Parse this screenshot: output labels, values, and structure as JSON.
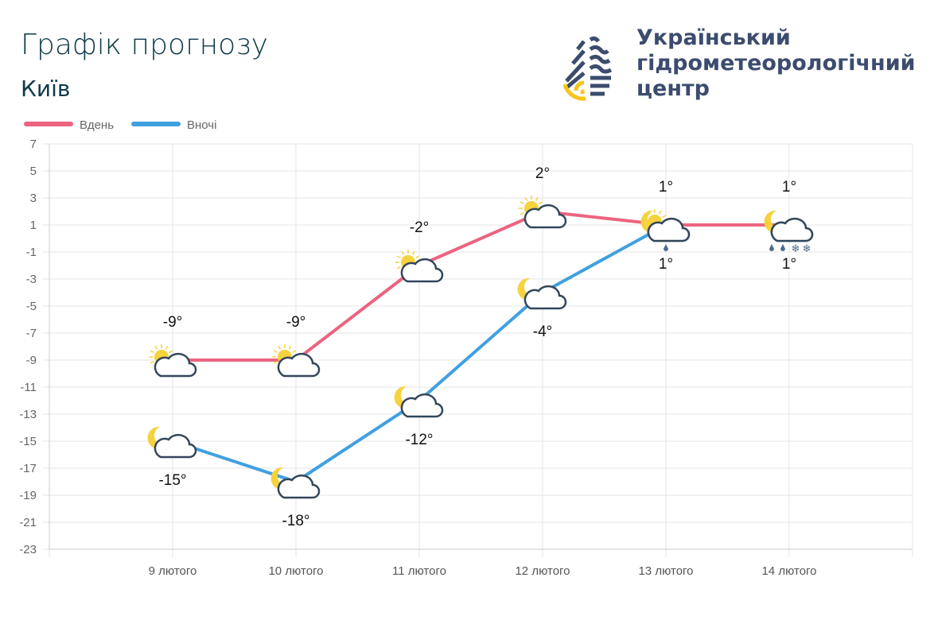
{
  "header": {
    "title": "Графік прогнозу",
    "city": "Київ"
  },
  "logo": {
    "lines": [
      "Український",
      "гідрометеорологічний",
      "центр"
    ],
    "colors": {
      "blue": "#3b4c6e",
      "yellow": "#f5c518"
    }
  },
  "chart_data": {
    "type": "line",
    "categories": [
      "9 лютого",
      "10 лютого",
      "11 лютого",
      "12 лютого",
      "13 лютого",
      "14 лютого"
    ],
    "series": [
      {
        "name": "Вдень",
        "color": "#ec6480",
        "values": [
          -9,
          -9,
          -2,
          2,
          1,
          1
        ],
        "labels": [
          "-9°",
          "-9°",
          "-2°",
          "2°",
          "1°",
          "1°"
        ],
        "icons": [
          "sun-cloud",
          "sun-cloud",
          "sun-cloud",
          "sun-cloud",
          "sun-cloud-rain",
          "cloud-rain-snow"
        ]
      },
      {
        "name": "Вночі",
        "color": "#3fa0e0",
        "values": [
          -15,
          -18,
          -12,
          -4,
          1,
          1
        ],
        "labels": [
          "-15°",
          "-18°",
          "-12°",
          "-4°",
          "1°",
          "1°"
        ],
        "icons": [
          "moon-cloud",
          "moon-cloud",
          "moon-cloud",
          "moon-cloud",
          "moon-cloud",
          "moon-cloud"
        ]
      }
    ],
    "ylim": [
      -23,
      7
    ],
    "yticks": [
      "7",
      "5",
      "3",
      "1",
      "-1",
      "-3",
      "-5",
      "-7",
      "-9",
      "-11",
      "-13",
      "-15",
      "-17",
      "-19",
      "-21",
      "-23"
    ],
    "grid": true,
    "legend": "top-left"
  }
}
